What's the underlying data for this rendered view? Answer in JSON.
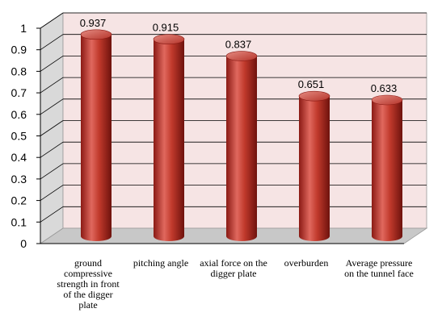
{
  "chart_data": {
    "type": "bar",
    "style": "3d-cylinder",
    "categories": [
      "ground compressive strength in front of the digger plate",
      "pitching angle",
      "axial force on the digger plate",
      "overburden",
      "Average pressure on the tunnel face"
    ],
    "values": [
      0.937,
      0.915,
      0.837,
      0.651,
      0.633
    ],
    "data_labels": [
      "0.937",
      "0.915",
      "0.837",
      "0.651",
      "0.633"
    ],
    "ylim": [
      0,
      1
    ],
    "yticks": [
      "0",
      "0.1",
      "0.2",
      "0.3",
      "0.4",
      "0.5",
      "0.6",
      "0.7",
      "0.8",
      "0.9",
      "1"
    ],
    "grid": true,
    "legend": "none",
    "colors": {
      "bar": "#c0392b",
      "bar_highlight": "#e8776d",
      "bar_shadow": "#7a1410",
      "back_wall": "#f6e4e4",
      "floor": "#c8c8c8",
      "side_wall": "#d9d9d9",
      "gridline": "#000000"
    }
  }
}
